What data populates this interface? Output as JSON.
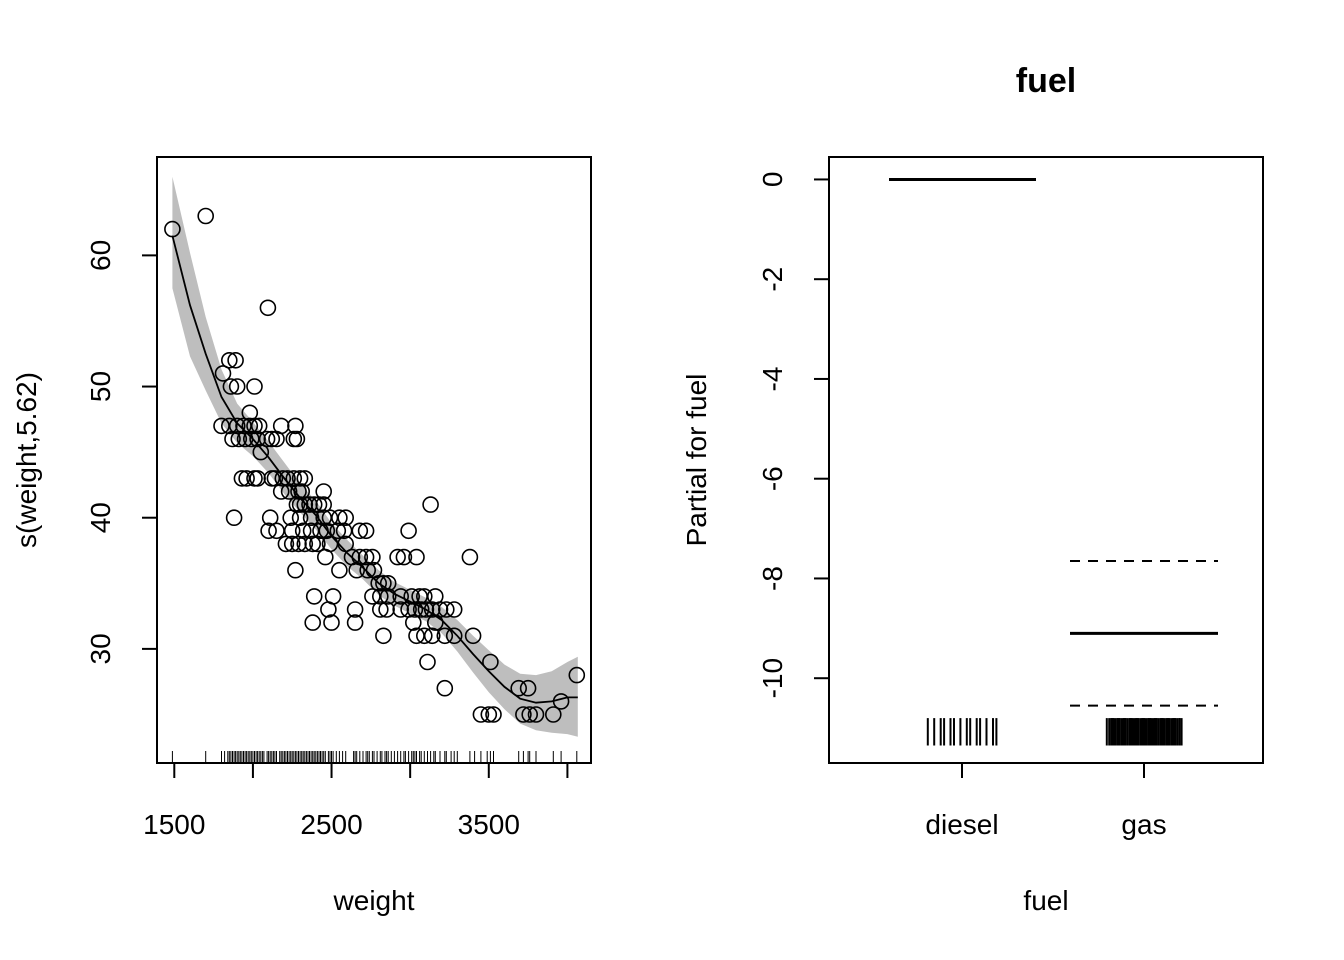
{
  "chart_data": [
    {
      "type": "scatter",
      "title": "",
      "xlabel": "weight",
      "ylabel": "s(weight,5.62)",
      "xlim": [
        1390,
        4150
      ],
      "ylim": [
        21.3,
        67.5
      ],
      "xticks": [
        1500,
        2500,
        3500
      ],
      "xtick_labels": [
        "1500",
        "2500",
        "3500"
      ],
      "xticks_minor": [
        2000,
        3000,
        4000
      ],
      "yticks": [
        30,
        40,
        50,
        60
      ],
      "ytick_labels": [
        "30",
        "40",
        "50",
        "60"
      ],
      "grid": false,
      "series": [
        {
          "name": "smooth fit",
          "kind": "line",
          "x": [
            1488,
            1600,
            1700,
            1800,
            1900,
            2000,
            2100,
            2200,
            2300,
            2400,
            2500,
            2600,
            2700,
            2800,
            2900,
            3000,
            3100,
            3200,
            3300,
            3400,
            3500,
            3600,
            3700,
            3800,
            3900,
            4000,
            4066
          ],
          "y": [
            61.5,
            56.2,
            52.5,
            49.2,
            47.2,
            46.0,
            44.6,
            43.0,
            41.5,
            40.2,
            38.6,
            37.3,
            36.2,
            35.0,
            34.2,
            33.6,
            33.0,
            32.2,
            31.0,
            29.6,
            28.3,
            27.1,
            26.2,
            25.9,
            26.0,
            26.3,
            26.3
          ]
        },
        {
          "name": "confidence band",
          "kind": "band",
          "x": [
            1488,
            1600,
            1700,
            1800,
            1900,
            2000,
            2100,
            2200,
            2300,
            2400,
            2500,
            2600,
            2700,
            2800,
            2900,
            3000,
            3100,
            3200,
            3300,
            3400,
            3500,
            3600,
            3700,
            3800,
            3900,
            4000,
            4066
          ],
          "upper": [
            66.0,
            60.2,
            55.3,
            51.3,
            48.7,
            47.3,
            45.8,
            44.2,
            42.6,
            41.3,
            39.6,
            38.3,
            37.1,
            36.0,
            35.1,
            34.5,
            33.9,
            33.2,
            32.2,
            31.0,
            29.9,
            28.8,
            28.1,
            28.0,
            28.3,
            29.0,
            29.4
          ],
          "lower": [
            57.5,
            52.3,
            49.7,
            47.2,
            45.7,
            44.7,
            43.4,
            41.8,
            40.4,
            39.1,
            37.6,
            36.3,
            35.3,
            34.1,
            33.3,
            32.7,
            32.1,
            31.2,
            29.8,
            28.2,
            26.7,
            25.4,
            24.3,
            23.8,
            23.6,
            23.5,
            23.3
          ]
        },
        {
          "name": "partial residuals",
          "kind": "points",
          "points": [
            [
              1488,
              62
            ],
            [
              1700,
              63
            ],
            [
              2095,
              56
            ],
            [
              1810,
              51
            ],
            [
              1850,
              52
            ],
            [
              1890,
              52
            ],
            [
              1900,
              50
            ],
            [
              1860,
              50
            ],
            [
              2010,
              50
            ],
            [
              1980,
              48
            ],
            [
              1800,
              47
            ],
            [
              1850,
              47
            ],
            [
              1900,
              47
            ],
            [
              1940,
              47
            ],
            [
              1980,
              47
            ],
            [
              2010,
              47
            ],
            [
              2040,
              47
            ],
            [
              2180,
              47
            ],
            [
              2270,
              47
            ],
            [
              1870,
              46
            ],
            [
              1910,
              46
            ],
            [
              1950,
              46
            ],
            [
              1990,
              46
            ],
            [
              2030,
              46
            ],
            [
              2090,
              46
            ],
            [
              2120,
              46
            ],
            [
              2150,
              46
            ],
            [
              2260,
              46
            ],
            [
              2280,
              46
            ],
            [
              2050,
              45
            ],
            [
              1930,
              43
            ],
            [
              1960,
              43
            ],
            [
              2010,
              43
            ],
            [
              2030,
              43
            ],
            [
              2120,
              43
            ],
            [
              2140,
              43
            ],
            [
              2190,
              43
            ],
            [
              2220,
              43
            ],
            [
              2260,
              43
            ],
            [
              2300,
              43
            ],
            [
              2330,
              43
            ],
            [
              2180,
              42
            ],
            [
              2230,
              42
            ],
            [
              2290,
              42
            ],
            [
              2310,
              42
            ],
            [
              2450,
              42
            ],
            [
              2280,
              41
            ],
            [
              2300,
              41
            ],
            [
              2330,
              41
            ],
            [
              2360,
              41
            ],
            [
              2390,
              41
            ],
            [
              2420,
              41
            ],
            [
              2450,
              41
            ],
            [
              3130,
              41
            ],
            [
              1880,
              40
            ],
            [
              2110,
              40
            ],
            [
              2240,
              40
            ],
            [
              2300,
              40
            ],
            [
              2370,
              40
            ],
            [
              2450,
              40
            ],
            [
              2490,
              40
            ],
            [
              2550,
              40
            ],
            [
              2590,
              40
            ],
            [
              2100,
              39
            ],
            [
              2150,
              39
            ],
            [
              2250,
              39
            ],
            [
              2320,
              39
            ],
            [
              2370,
              39
            ],
            [
              2430,
              39
            ],
            [
              2470,
              39
            ],
            [
              2540,
              39
            ],
            [
              2580,
              39
            ],
            [
              2680,
              39
            ],
            [
              2720,
              39
            ],
            [
              2990,
              39
            ],
            [
              2210,
              38
            ],
            [
              2250,
              38
            ],
            [
              2290,
              38
            ],
            [
              2330,
              38
            ],
            [
              2380,
              38
            ],
            [
              2410,
              38
            ],
            [
              2490,
              38
            ],
            [
              2590,
              38
            ],
            [
              2460,
              37
            ],
            [
              2630,
              37
            ],
            [
              2680,
              37
            ],
            [
              2720,
              37
            ],
            [
              2760,
              37
            ],
            [
              2920,
              37
            ],
            [
              2960,
              37
            ],
            [
              3040,
              37
            ],
            [
              3380,
              37
            ],
            [
              2270,
              36
            ],
            [
              2550,
              36
            ],
            [
              2660,
              36
            ],
            [
              2730,
              36
            ],
            [
              2770,
              36
            ],
            [
              2800,
              35
            ],
            [
              2830,
              35
            ],
            [
              2860,
              35
            ],
            [
              2390,
              34
            ],
            [
              2510,
              34
            ],
            [
              2760,
              34
            ],
            [
              2810,
              34
            ],
            [
              2860,
              34
            ],
            [
              2940,
              34
            ],
            [
              3010,
              34
            ],
            [
              3060,
              34
            ],
            [
              3090,
              34
            ],
            [
              3160,
              34
            ],
            [
              2480,
              33
            ],
            [
              2650,
              33
            ],
            [
              2810,
              33
            ],
            [
              2850,
              33
            ],
            [
              2940,
              33
            ],
            [
              2990,
              33
            ],
            [
              3030,
              33
            ],
            [
              3070,
              33
            ],
            [
              3100,
              33
            ],
            [
              3140,
              33
            ],
            [
              3190,
              33
            ],
            [
              3230,
              33
            ],
            [
              3280,
              33
            ],
            [
              2380,
              32
            ],
            [
              2500,
              32
            ],
            [
              2650,
              32
            ],
            [
              3020,
              32
            ],
            [
              3160,
              32
            ],
            [
              2830,
              31
            ],
            [
              3040,
              31
            ],
            [
              3090,
              31
            ],
            [
              3140,
              31
            ],
            [
              3220,
              31
            ],
            [
              3280,
              31
            ],
            [
              3400,
              31
            ],
            [
              3110,
              29
            ],
            [
              3510,
              29
            ],
            [
              3220,
              27
            ],
            [
              3690,
              27
            ],
            [
              3750,
              27
            ],
            [
              4060,
              28
            ],
            [
              3960,
              26
            ],
            [
              3450,
              25
            ],
            [
              3500,
              25
            ],
            [
              3530,
              25
            ],
            [
              3720,
              25
            ],
            [
              3760,
              25
            ],
            [
              3800,
              25
            ],
            [
              3910,
              25
            ]
          ]
        },
        {
          "name": "rug",
          "kind": "rug",
          "x": [
            1488,
            1700,
            1800,
            1820,
            1840,
            1850,
            1860,
            1870,
            1880,
            1890,
            1900,
            1910,
            1920,
            1930,
            1940,
            1950,
            1960,
            1970,
            1980,
            1990,
            2000,
            2010,
            2020,
            2030,
            2040,
            2050,
            2060,
            2070,
            2090,
            2100,
            2110,
            2120,
            2130,
            2140,
            2150,
            2170,
            2180,
            2190,
            2200,
            2210,
            2220,
            2230,
            2240,
            2250,
            2260,
            2270,
            2280,
            2290,
            2300,
            2310,
            2320,
            2330,
            2340,
            2350,
            2360,
            2370,
            2380,
            2390,
            2400,
            2410,
            2420,
            2430,
            2440,
            2450,
            2460,
            2480,
            2490,
            2500,
            2510,
            2530,
            2550,
            2570,
            2590,
            2640,
            2650,
            2660,
            2680,
            2700,
            2720,
            2730,
            2740,
            2760,
            2770,
            2790,
            2810,
            2820,
            2840,
            2850,
            2860,
            2880,
            2900,
            2920,
            2940,
            2960,
            2970,
            2990,
            3010,
            3020,
            3030,
            3040,
            3060,
            3070,
            3090,
            3110,
            3130,
            3150,
            3160,
            3190,
            3220,
            3230,
            3260,
            3280,
            3300,
            3380,
            3410,
            3450,
            3490,
            3510,
            3530,
            3690,
            3720,
            3750,
            3760,
            3800,
            3910,
            3960,
            4060
          ]
        }
      ]
    },
    {
      "type": "termplot-factor",
      "title": "fuel",
      "xlabel": "fuel",
      "ylabel": "Partial for fuel",
      "categories": [
        "diesel",
        "gas"
      ],
      "ylim": [
        -11.7,
        0.45
      ],
      "yticks": [
        0,
        -2,
        -4,
        -6,
        -8,
        -10
      ],
      "ytick_labels": [
        "0",
        "-2",
        "-4",
        "-6",
        "-8",
        "-10"
      ],
      "grid": false,
      "effects": [
        {
          "category": "diesel",
          "estimate": 0
        },
        {
          "category": "gas",
          "estimate": -9.1,
          "upper": -7.65,
          "lower": -10.55
        }
      ],
      "rug": {
        "y_range": [
          -11.35,
          -10.8
        ],
        "diesel_ticks": 14,
        "gas_ticks": 60
      }
    }
  ]
}
